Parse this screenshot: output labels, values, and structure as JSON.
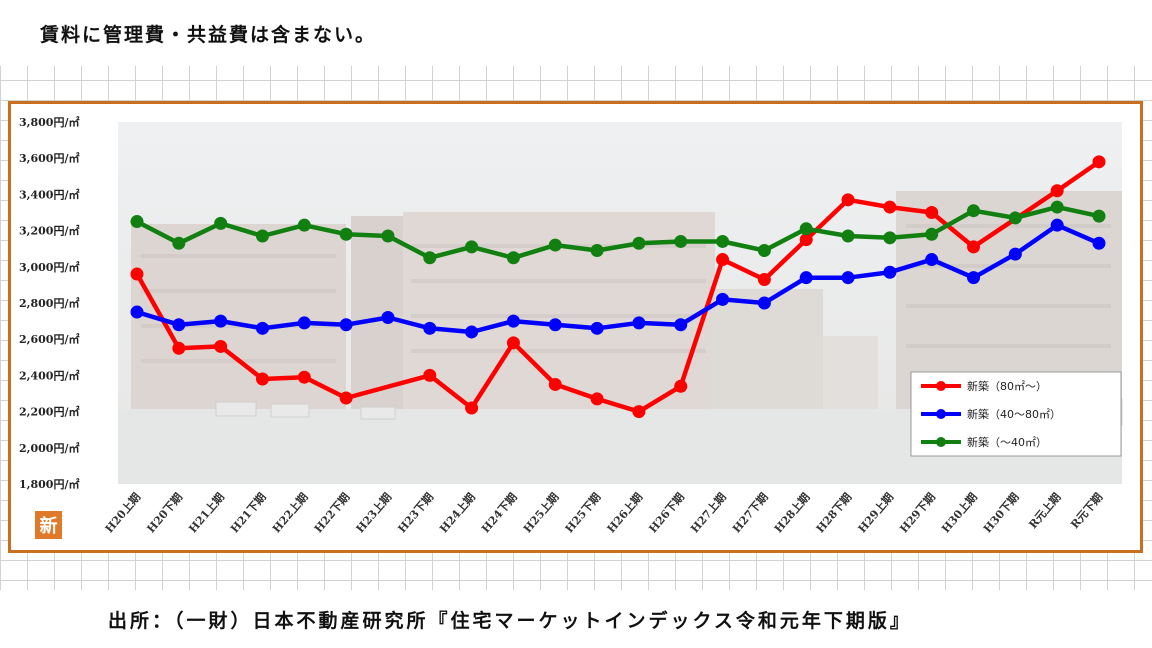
{
  "note": "賃料に管理費・共益費は含まない。",
  "source": "出所：（一財）日本不動産研究所『住宅マーケットインデックス令和元年下期版』",
  "logo_char": "新",
  "colors": {
    "frame": "#c8701e",
    "logo": "#e07a2a"
  },
  "chart_data": {
    "type": "line",
    "title": "",
    "xlabel": "",
    "ylabel": "",
    "ylim": [
      1800,
      3800
    ],
    "yticks": [
      "1,800円/㎡",
      "2,000円/㎡",
      "2,200円/㎡",
      "2,400円/㎡",
      "2,600円/㎡",
      "2,800円/㎡",
      "3,000円/㎡",
      "3,200円/㎡",
      "3,400円/㎡",
      "3,600円/㎡",
      "3,800円/㎡"
    ],
    "ytick_values": [
      1800,
      2000,
      2200,
      2400,
      2600,
      2800,
      3000,
      3200,
      3400,
      3600,
      3800
    ],
    "categories": [
      "H20上期",
      "H20下期",
      "H21上期",
      "H21下期",
      "H22上期",
      "H22下期",
      "H23上期",
      "H23下期",
      "H24上期",
      "H24下期",
      "H25上期",
      "H25下期",
      "H26上期",
      "H26下期",
      "H27上期",
      "H27下期",
      "H28上期",
      "H28下期",
      "H29上期",
      "H29下期",
      "H30上期",
      "H30下期",
      "R元上期",
      "R元下期"
    ],
    "grid": false,
    "legend_position": "bottom-right",
    "series": [
      {
        "name": "新築（80㎡～）",
        "color": "#ff0000",
        "values": [
          2960,
          2550,
          2560,
          2380,
          2390,
          2275,
          null,
          2400,
          2220,
          2580,
          2350,
          2270,
          2200,
          2340,
          3040,
          2930,
          3150,
          3370,
          3330,
          3300,
          3110,
          null,
          3420,
          3580
        ]
      },
      {
        "name": "新築（40～80㎡）",
        "color": "#0000ff",
        "values": [
          2750,
          2680,
          2700,
          2660,
          2690,
          2680,
          2720,
          2660,
          2640,
          2700,
          2680,
          2660,
          2690,
          2680,
          2820,
          2800,
          2940,
          2940,
          2970,
          3040,
          2940,
          3070,
          3230,
          3130
        ]
      },
      {
        "name": "新築（～40㎡）",
        "color": "#118011",
        "values": [
          3250,
          3130,
          3240,
          3170,
          3230,
          3180,
          3170,
          3050,
          3110,
          3050,
          3120,
          3090,
          3130,
          3140,
          3140,
          3090,
          3210,
          3170,
          3160,
          3180,
          3310,
          3270,
          3330,
          3280
        ]
      }
    ]
  }
}
